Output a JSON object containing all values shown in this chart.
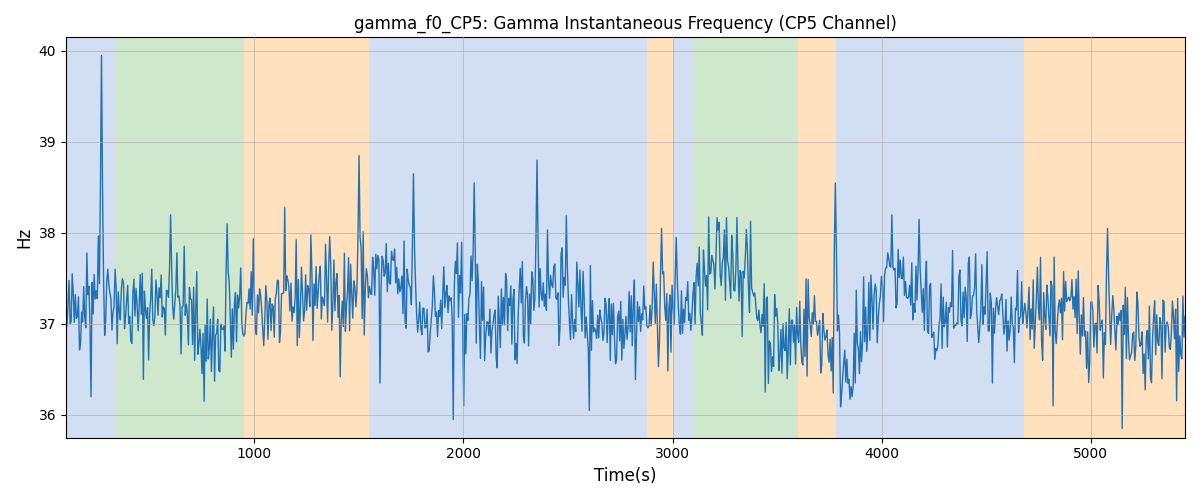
{
  "title": "gamma_f0_CP5: Gamma Instantaneous Frequency (CP5 Channel)",
  "xlabel": "Time(s)",
  "ylabel": "Hz",
  "xlim": [
    100,
    5450
  ],
  "ylim": [
    35.75,
    40.15
  ],
  "yticks": [
    36,
    37,
    38,
    39,
    40
  ],
  "xticks": [
    1000,
    2000,
    3000,
    4000,
    5000
  ],
  "line_color": "#2171b5",
  "line_width": 1.0,
  "bg_regions": [
    {
      "xmin": 100,
      "xmax": 340,
      "color": "#aec6e8",
      "alpha": 0.55
    },
    {
      "xmin": 340,
      "xmax": 950,
      "color": "#a8d5a2",
      "alpha": 0.55
    },
    {
      "xmin": 950,
      "xmax": 1550,
      "color": "#ffc98a",
      "alpha": 0.55
    },
    {
      "xmin": 1550,
      "xmax": 2880,
      "color": "#aec6e8",
      "alpha": 0.55
    },
    {
      "xmin": 2880,
      "xmax": 3000,
      "color": "#ffc98a",
      "alpha": 0.55
    },
    {
      "xmin": 3000,
      "xmax": 3100,
      "color": "#aec6e8",
      "alpha": 0.55
    },
    {
      "xmin": 3100,
      "xmax": 3600,
      "color": "#a8d5a2",
      "alpha": 0.55
    },
    {
      "xmin": 3600,
      "xmax": 3780,
      "color": "#ffc98a",
      "alpha": 0.55
    },
    {
      "xmin": 3780,
      "xmax": 4680,
      "color": "#aec6e8",
      "alpha": 0.55
    },
    {
      "xmin": 4680,
      "xmax": 5450,
      "color": "#ffc98a",
      "alpha": 0.55
    }
  ],
  "grid_color": "#aaaaaa",
  "grid_alpha": 0.6,
  "seed": 42,
  "base_freq": 37.05,
  "noise_std": 0.28,
  "figsize": [
    12,
    5
  ],
  "dpi": 100
}
